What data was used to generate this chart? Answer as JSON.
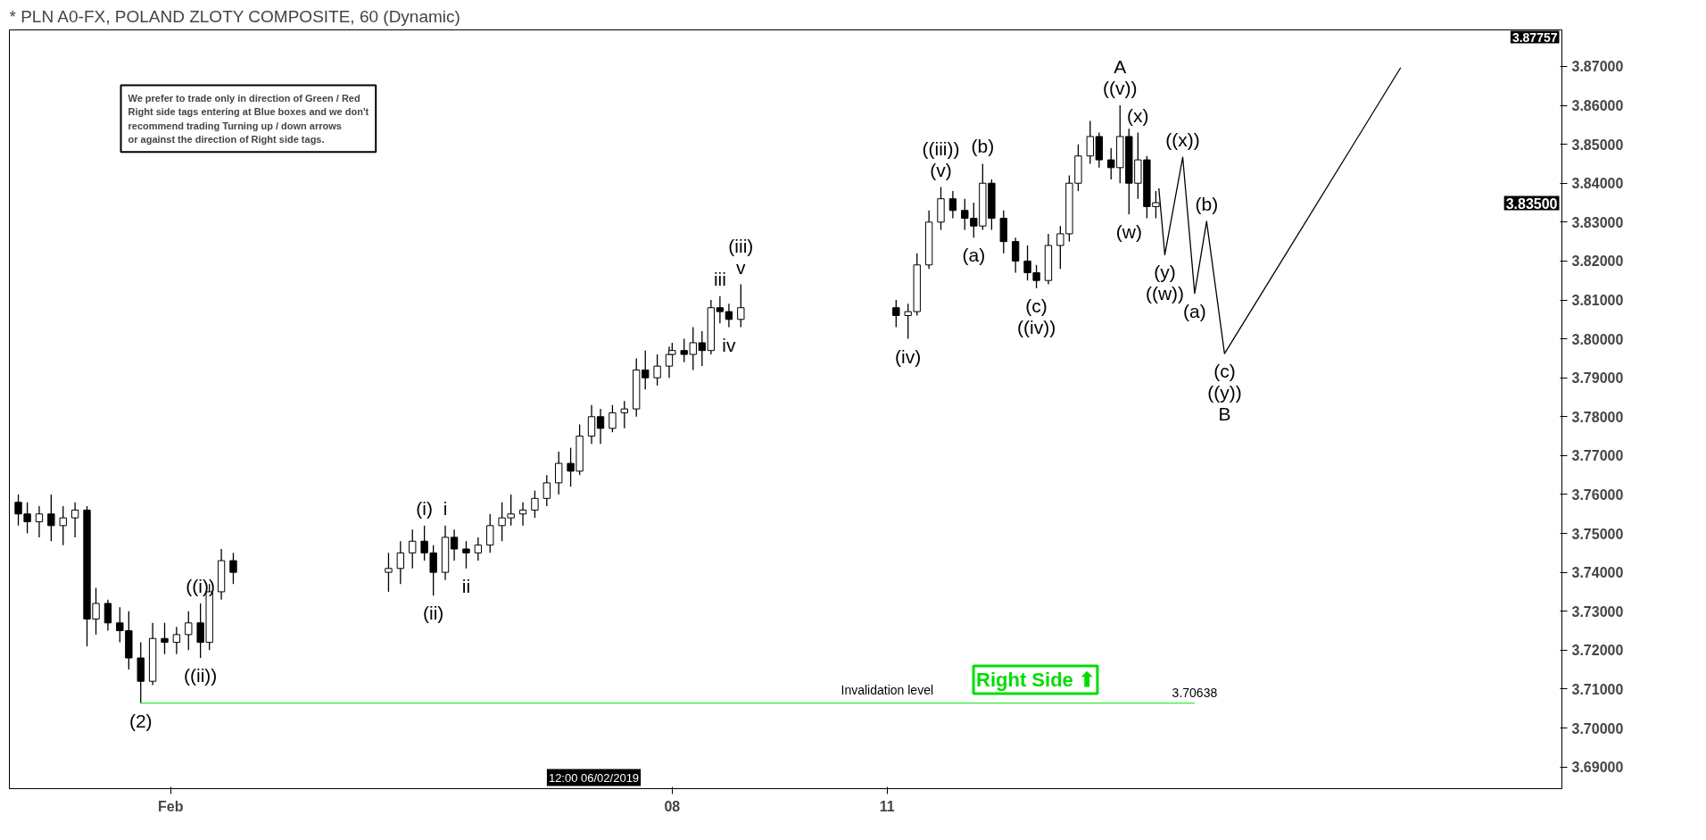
{
  "chart_data": {
    "type": "candlestick",
    "title": "* PLN A0-FX, POLAND ZLOTY COMPOSITE, 60 (Dynamic)",
    "x": [
      "2019-01-29T21:00",
      "2019-01-30T00:00",
      "2019-01-30T04:00",
      "2019-01-30T08:00",
      "2019-01-30T12:00",
      "2019-01-30T16:00",
      "2019-01-30T20:00",
      "2019-01-30T23:00",
      "2019-01-31T03:00",
      "2019-01-31T07:00",
      "2019-01-31T10:00",
      "2019-01-31T14:00",
      "2019-01-31T18:00",
      "2019-01-31T22:00",
      "2019-02-01T02:00",
      "2019-02-01T06:00",
      "2019-02-01T10:00",
      "2019-02-01T13:00",
      "2019-02-01T17:00",
      "2019-02-01T21:00",
      "2019-02-04T01:00",
      "2019-02-04T05:00",
      "2019-02-04T09:00",
      "2019-02-04T13:00",
      "2019-02-04T16:00",
      "2019-02-04T20:00",
      "2019-02-04T23:00",
      "2019-02-05T03:00",
      "2019-02-05T07:00",
      "2019-02-05T11:00",
      "2019-02-05T15:00",
      "2019-02-05T18:00",
      "2019-02-05T22:00",
      "2019-02-06T02:00",
      "2019-02-06T06:00",
      "2019-02-06T10:00",
      "2019-02-06T14:00",
      "2019-02-06T17:00",
      "2019-02-06T21:00",
      "2019-02-07T00:00",
      "2019-02-07T04:00",
      "2019-02-07T08:00",
      "2019-02-07T12:00",
      "2019-02-07T15:00",
      "2019-02-07T19:00",
      "2019-02-07T23:00",
      "2019-02-08T00:00",
      "2019-02-08T04:00",
      "2019-02-08T07:00",
      "2019-02-08T10:00",
      "2019-02-08T13:00",
      "2019-02-08T16:00",
      "2019-02-08T19:00",
      "2019-02-08T23:00",
      "2019-02-11T03:00",
      "2019-02-11T07:00",
      "2019-02-11T10:00",
      "2019-02-11T14:00",
      "2019-02-11T18:00",
      "2019-02-11T22:00",
      "2019-02-12T02:00",
      "2019-02-12T05:00",
      "2019-02-12T08:00",
      "2019-02-12T11:00",
      "2019-02-12T15:00",
      "2019-02-12T19:00",
      "2019-02-12T23:00",
      "2019-02-13T02:00",
      "2019-02-13T06:00",
      "2019-02-13T10:00",
      "2019-02-13T13:00",
      "2019-02-13T16:00",
      "2019-02-13T20:00",
      "2019-02-13T23:00",
      "2019-02-14T03:00",
      "2019-02-14T06:00",
      "2019-02-14T09:00",
      "2019-02-14T12:00",
      "2019-02-14T15:00",
      "2019-02-14T18:00"
    ],
    "ohlc": [
      [
        3.758,
        3.76,
        3.752,
        3.755
      ],
      [
        3.755,
        3.758,
        3.75,
        3.753
      ],
      [
        3.753,
        3.757,
        3.749,
        3.755
      ],
      [
        3.755,
        3.76,
        3.748,
        3.752
      ],
      [
        3.752,
        3.757,
        3.747,
        3.754
      ],
      [
        3.754,
        3.758,
        3.749,
        3.756
      ],
      [
        3.756,
        3.757,
        3.721,
        3.728
      ],
      [
        3.728,
        3.736,
        3.724,
        3.732
      ],
      [
        3.732,
        3.733,
        3.725,
        3.727
      ],
      [
        3.727,
        3.731,
        3.722,
        3.725
      ],
      [
        3.725,
        3.73,
        3.715,
        3.718
      ],
      [
        3.718,
        3.722,
        3.7064,
        3.712
      ],
      [
        3.712,
        3.727,
        3.711,
        3.723
      ],
      [
        3.723,
        3.727,
        3.719,
        3.722
      ],
      [
        3.722,
        3.726,
        3.719,
        3.724
      ],
      [
        3.724,
        3.73,
        3.72,
        3.727
      ],
      [
        3.727,
        3.732,
        3.718,
        3.722
      ],
      [
        3.722,
        3.737,
        3.72,
        3.735
      ],
      [
        3.735,
        3.746,
        3.733,
        3.743
      ],
      [
        3.743,
        3.745,
        3.737,
        3.74
      ],
      [
        3.74,
        3.745,
        3.735,
        3.741
      ],
      [
        3.741,
        3.748,
        3.737,
        3.745
      ],
      [
        3.745,
        3.751,
        3.741,
        3.748
      ],
      [
        3.748,
        3.752,
        3.743,
        3.745
      ],
      [
        3.745,
        3.747,
        3.734,
        3.74
      ],
      [
        3.74,
        3.752,
        3.738,
        3.749
      ],
      [
        3.749,
        3.751,
        3.743,
        3.746
      ],
      [
        3.746,
        3.748,
        3.741,
        3.745
      ],
      [
        3.745,
        3.749,
        3.743,
        3.747
      ],
      [
        3.747,
        3.755,
        3.745,
        3.752
      ],
      [
        3.752,
        3.758,
        3.748,
        3.754
      ],
      [
        3.754,
        3.76,
        3.752,
        3.755
      ],
      [
        3.755,
        3.758,
        3.752,
        3.756
      ],
      [
        3.756,
        3.761,
        3.754,
        3.759
      ],
      [
        3.759,
        3.765,
        3.757,
        3.763
      ],
      [
        3.763,
        3.771,
        3.76,
        3.768
      ],
      [
        3.768,
        3.772,
        3.762,
        3.766
      ],
      [
        3.766,
        3.778,
        3.765,
        3.775
      ],
      [
        3.775,
        3.783,
        3.773,
        3.78
      ],
      [
        3.78,
        3.782,
        3.773,
        3.777
      ],
      [
        3.777,
        3.783,
        3.776,
        3.781
      ],
      [
        3.781,
        3.784,
        3.777,
        3.782
      ],
      [
        3.782,
        3.795,
        3.78,
        3.792
      ],
      [
        3.792,
        3.797,
        3.787,
        3.79
      ],
      [
        3.79,
        3.796,
        3.788,
        3.793
      ],
      [
        3.793,
        3.798,
        3.79,
        3.796
      ],
      [
        3.796,
        3.799,
        3.794,
        3.797
      ],
      [
        3.797,
        3.8,
        3.794,
        3.796
      ],
      [
        3.796,
        3.803,
        3.792,
        3.799
      ],
      [
        3.799,
        3.802,
        3.793,
        3.797
      ],
      [
        3.797,
        3.81,
        3.796,
        3.808
      ],
      [
        3.808,
        3.811,
        3.804,
        3.807
      ],
      [
        3.807,
        3.809,
        3.803,
        3.805
      ],
      [
        3.805,
        3.814,
        3.803,
        3.808
      ],
      [
        3.808,
        3.81,
        3.803,
        3.806
      ],
      [
        3.806,
        3.809,
        3.8,
        3.807
      ],
      [
        3.807,
        3.822,
        3.806,
        3.819
      ],
      [
        3.819,
        3.833,
        3.818,
        3.83
      ],
      [
        3.83,
        3.839,
        3.828,
        3.836
      ],
      [
        3.836,
        3.838,
        3.831,
        3.833
      ],
      [
        3.833,
        3.836,
        3.828,
        3.831
      ],
      [
        3.831,
        3.835,
        3.826,
        3.829
      ],
      [
        3.829,
        3.845,
        3.828,
        3.84
      ],
      [
        3.84,
        3.841,
        3.828,
        3.831
      ],
      [
        3.831,
        3.833,
        3.822,
        3.825
      ],
      [
        3.825,
        3.826,
        3.817,
        3.82
      ],
      [
        3.82,
        3.824,
        3.815,
        3.817
      ],
      [
        3.817,
        3.819,
        3.813,
        3.815
      ],
      [
        3.815,
        3.827,
        3.814,
        3.824
      ],
      [
        3.824,
        3.829,
        3.818,
        3.827
      ],
      [
        3.827,
        3.842,
        3.825,
        3.84
      ],
      [
        3.84,
        3.85,
        3.838,
        3.847
      ],
      [
        3.847,
        3.856,
        3.845,
        3.852
      ],
      [
        3.852,
        3.853,
        3.844,
        3.846
      ],
      [
        3.846,
        3.849,
        3.841,
        3.844
      ],
      [
        3.844,
        3.86,
        3.84,
        3.852
      ],
      [
        3.852,
        3.854,
        3.832,
        3.84
      ],
      [
        3.84,
        3.853,
        3.836,
        3.846
      ],
      [
        3.846,
        3.847,
        3.831,
        3.834
      ],
      [
        3.834,
        3.838,
        3.831,
        3.835
      ]
    ],
    "color": "#000000",
    "series": [
      {
        "type": "line",
        "color": "#33ee33",
        "x": [
          "2019-01-31T14:00",
          "2019-02-15T07:00"
        ],
        "values": [
          3.70638,
          3.70638
        ]
      },
      {
        "type": "line",
        "color": "#000000",
        "x": [
          "2019-02-14T19:00",
          "2019-02-14T21:00",
          "2019-02-15T03:00",
          "2019-02-15T07:00",
          "2019-02-15T11:00",
          "2019-02-15T17:00",
          "2019-02-18T04:00"
        ],
        "values": [
          3.8387,
          3.8216,
          3.8467,
          3.8117,
          3.8302,
          3.7962,
          3.8697
        ]
      }
    ],
    "xlim": [
      "2019-01-29T18:00",
      "2019-02-20T10:00"
    ],
    "ylim": [
      3.6844,
      3.8794
    ],
    "xticks": [
      {
        "value": "2019-02-01",
        "label": "Feb"
      },
      {
        "value": "2019-02-08",
        "label": "08"
      },
      {
        "value": "2019-02-11",
        "label": "11"
      }
    ],
    "yticks": [
      {
        "value": 3.69,
        "label": "3.69000"
      },
      {
        "value": 3.7,
        "label": "3.70000"
      },
      {
        "value": 3.71,
        "label": "3.71000"
      },
      {
        "value": 3.72,
        "label": "3.72000"
      },
      {
        "value": 3.73,
        "label": "3.73000"
      },
      {
        "value": 3.74,
        "label": "3.74000"
      },
      {
        "value": 3.75,
        "label": "3.75000"
      },
      {
        "value": 3.76,
        "label": "3.76000"
      },
      {
        "value": 3.77,
        "label": "3.77000"
      },
      {
        "value": 3.78,
        "label": "3.78000"
      },
      {
        "value": 3.79,
        "label": "3.79000"
      },
      {
        "value": 3.8,
        "label": "3.80000"
      },
      {
        "value": 3.81,
        "label": "3.81000"
      },
      {
        "value": 3.82,
        "label": "3.82000"
      },
      {
        "value": 3.83,
        "label": "3.83000"
      },
      {
        "value": 3.84,
        "label": "3.84000"
      },
      {
        "value": 3.85,
        "label": "3.85000"
      },
      {
        "value": 3.86,
        "label": "3.86000"
      },
      {
        "value": 3.87,
        "label": "3.87000"
      }
    ],
    "grid": false,
    "annotations": [
      "We prefer to trade only in direction of Green / Red\nRight side tags entering at Blue boxes and we don't\nrecommend trading Turning up / down arrows\nor against the direction of Right side tags.",
      "Right Side ⬆",
      "12:00 06/02/2019",
      "3.87757",
      "3.83500",
      {
        "text": "Invalidation level",
        "x": "2019-02-11T00:00",
        "y": 3.70638
      },
      {
        "text": "3.70638",
        "x": "2019-02-15T07:00",
        "y": 3.70638
      },
      {
        "text": "(2)",
        "x": "2019-01-31T14:00",
        "y": 3.7064
      },
      {
        "text": "((i))",
        "x": "2019-02-01T10:00",
        "y": 3.732
      },
      {
        "text": "((ii))",
        "x": "2019-02-01T10:00",
        "y": 3.718
      },
      {
        "text": "(i)",
        "x": "2019-02-04T13:00",
        "y": 3.752
      },
      {
        "text": "(ii)",
        "x": "2019-02-04T16:00",
        "y": 3.734
      },
      {
        "text": "i",
        "x": "2019-02-04T20:00",
        "y": 3.752
      },
      {
        "text": "ii",
        "x": "2019-02-05T03:00",
        "y": 3.741
      },
      {
        "text": "iii",
        "x": "2019-02-08T16:00",
        "y": 3.811
      },
      {
        "text": "iv",
        "x": "2019-02-08T19:00",
        "y": 3.803
      },
      {
        "text": "v",
        "x": "2019-02-08T23:00",
        "y": 3.814
      },
      {
        "text": "(iii)",
        "x": "2019-02-08T23:00",
        "y": 3.814
      },
      {
        "text": "(iv)",
        "x": "2019-02-11T07:00",
        "y": 3.8
      },
      {
        "text": "(v)",
        "x": "2019-02-11T18:00",
        "y": 3.839
      },
      {
        "text": "((iii))",
        "x": "2019-02-11T18:00",
        "y": 3.839
      },
      {
        "text": "(a)",
        "x": "2019-02-12T05:00",
        "y": 3.826
      },
      {
        "text": "(b)",
        "x": "2019-02-12T08:00",
        "y": 3.845
      },
      {
        "text": "(c)",
        "x": "2019-02-13T02:00",
        "y": 3.813
      },
      {
        "text": "((iv))",
        "x": "2019-02-13T02:00",
        "y": 3.813
      },
      {
        "text": "((v))",
        "x": "2019-02-14T06:00",
        "y": 3.86
      },
      {
        "text": "A",
        "x": "2019-02-14T06:00",
        "y": 3.86
      },
      {
        "text": "(w)",
        "x": "2019-02-14T09:00",
        "y": 3.832
      },
      {
        "text": "(x)",
        "x": "2019-02-14T12:00",
        "y": 3.853
      },
      {
        "text": "(y)",
        "x": "2019-02-14T21:00",
        "y": 3.8216
      },
      {
        "text": "((w))",
        "x": "2019-02-14T21:00",
        "y": 3.8216
      },
      {
        "text": "((x))",
        "x": "2019-02-15T03:00",
        "y": 3.8467
      },
      {
        "text": "(a)",
        "x": "2019-02-15T07:00",
        "y": 3.8117
      },
      {
        "text": "(b)",
        "x": "2019-02-15T11:00",
        "y": 3.8302
      },
      {
        "text": "(c)",
        "x": "2019-02-15T17:00",
        "y": 3.7962
      },
      {
        "text": "((y))",
        "x": "2019-02-15T17:00",
        "y": 3.7962
      },
      {
        "text": "B",
        "x": "2019-02-15T17:00",
        "y": 3.7962
      }
    ]
  }
}
